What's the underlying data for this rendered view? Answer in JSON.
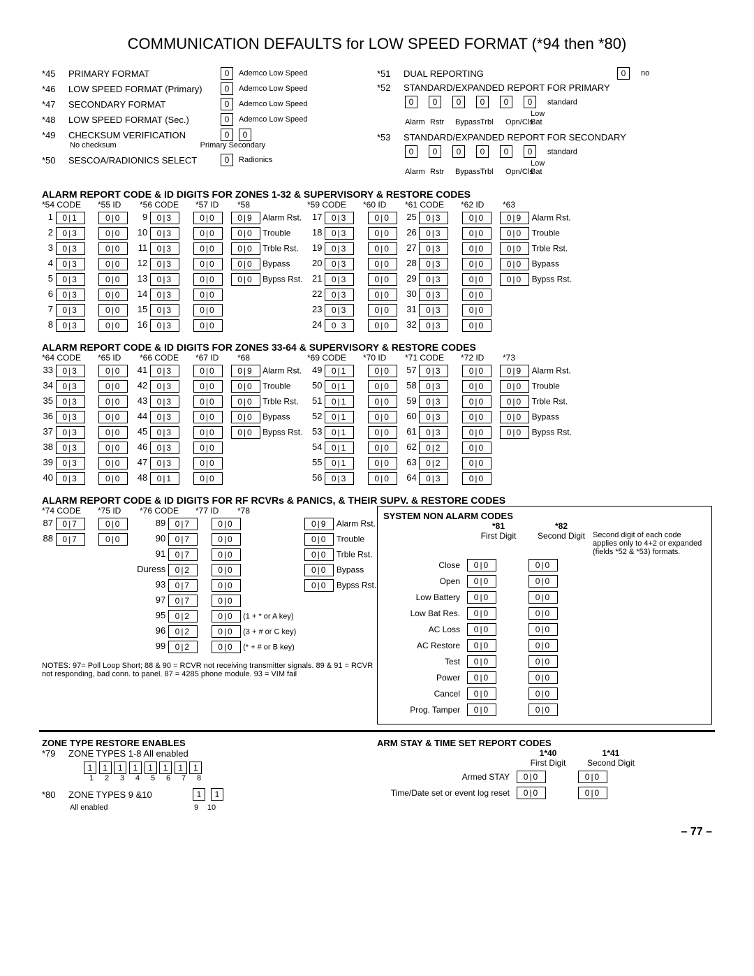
{
  "title": "COMMUNICATION DEFAULTS for LOW SPEED FORMAT (*94 then *80)",
  "page": "– 77 –",
  "top_left": [
    {
      "star": "*45",
      "label": "PRIMARY FORMAT",
      "val": "0",
      "note": "Ademco Low Speed"
    },
    {
      "star": "*46",
      "label": "LOW SPEED FORMAT (Primary)",
      "val": "0",
      "note": "Ademco Low Speed"
    },
    {
      "star": "*47",
      "label": "SECONDARY FORMAT",
      "val": "0",
      "note": "Ademco Low Speed"
    },
    {
      "star": "*48",
      "label": "LOW SPEED FORMAT (Sec.)",
      "val": "0",
      "note": "Ademco Low Speed"
    },
    {
      "star": "*49",
      "label": "CHECKSUM VERIFICATION",
      "val": "0",
      "val2": "0",
      "sub": "No checksum",
      "sub2": "Primary  Secondary"
    },
    {
      "star": "*50",
      "label": "SESCOA/RADIONICS SELECT",
      "val": "0",
      "note": "Radionics"
    }
  ],
  "top_right": {
    "r51": {
      "star": "*51",
      "label": "DUAL REPORTING",
      "val": "0",
      "note": "no"
    },
    "r52": {
      "star": "*52",
      "label": "STANDARD/EXPANDED REPORT FOR PRIMARY",
      "vals": [
        "0",
        "0",
        "0",
        "0",
        "0",
        "0"
      ],
      "note": "standard",
      "subs": [
        "Alarm",
        "Rstr",
        "Bypass",
        "Trbl",
        "Opn/Cls",
        "Low Bat"
      ]
    },
    "r53": {
      "star": "*53",
      "label": "STANDARD/EXPANDED REPORT  FOR SECONDARY",
      "vals": [
        "0",
        "0",
        "0",
        "0",
        "0",
        "0"
      ],
      "note": "standard",
      "subs": [
        "Alarm",
        "Rstr",
        "Bypass",
        "Trbl",
        "Opn/Cls",
        "Low Bat"
      ]
    }
  },
  "sec1_head": "ALARM  REPORT  CODE  &  ID  DIGITS  FOR  ZONES  1-32  &  SUPERVISORY  &  RESTORE  CODES",
  "sec1_cols": [
    "*54 CODE",
    "*55 ID",
    "*56 CODE",
    "*57 ID",
    "*58",
    "*59 CODE",
    "*60 ID",
    "*61 CODE",
    "*62 ID",
    "*63"
  ],
  "sec1": {
    "left": [
      {
        "z": "1",
        "c": "0|1",
        "i": "0|0"
      },
      {
        "z": "2",
        "c": "0|3",
        "i": "0|0"
      },
      {
        "z": "3",
        "c": "0|3",
        "i": "0|0"
      },
      {
        "z": "4",
        "c": "0|3",
        "i": "0|0"
      },
      {
        "z": "5",
        "c": "0|3",
        "i": "0|0"
      },
      {
        "z": "6",
        "c": "0|3",
        "i": "0|0"
      },
      {
        "z": "7",
        "c": "0|3",
        "i": "0|0"
      },
      {
        "z": "8",
        "c": "0|3",
        "i": "0|0"
      }
    ],
    "mid": [
      {
        "z": "9",
        "c": "0|3",
        "i": "0|0"
      },
      {
        "z": "10",
        "c": "0|3",
        "i": "0|0"
      },
      {
        "z": "11",
        "c": "0|3",
        "i": "0|0"
      },
      {
        "z": "12",
        "c": "0|3",
        "i": "0|0"
      },
      {
        "z": "13",
        "c": "0|3",
        "i": "0|0"
      },
      {
        "z": "14",
        "c": "0|3",
        "i": "0|0"
      },
      {
        "z": "15",
        "c": "0|3",
        "i": "0|0"
      },
      {
        "z": "16",
        "c": "0|3",
        "i": "0|0"
      }
    ],
    "star58": [
      {
        "v": "0|9",
        "l": "Alarm Rst."
      },
      {
        "v": "0|0",
        "l": "Trouble"
      },
      {
        "v": "0|0",
        "l": "Trble Rst."
      },
      {
        "v": "0|0",
        "l": "Bypass"
      },
      {
        "v": "0|0",
        "l": "Bypss Rst."
      }
    ],
    "r1": [
      {
        "z": "17",
        "c": "0|3",
        "i": "0|0"
      },
      {
        "z": "18",
        "c": "0|3",
        "i": "0|0"
      },
      {
        "z": "19",
        "c": "0|3",
        "i": "0|0"
      },
      {
        "z": "20",
        "c": "0|3",
        "i": "0|0"
      },
      {
        "z": "21",
        "c": "0|3",
        "i": "0|0"
      },
      {
        "z": "22",
        "c": "0|3",
        "i": "0|0"
      },
      {
        "z": "23",
        "c": "0|3",
        "i": "0|0"
      },
      {
        "z": "24",
        "c": "0 3",
        "i": "0|0"
      }
    ],
    "r2": [
      {
        "z": "25",
        "c": "0|3",
        "i": "0|0"
      },
      {
        "z": "26",
        "c": "0|3",
        "i": "0|0"
      },
      {
        "z": "27",
        "c": "0|3",
        "i": "0|0"
      },
      {
        "z": "28",
        "c": "0|3",
        "i": "0|0"
      },
      {
        "z": "29",
        "c": "0|3",
        "i": "0|0"
      },
      {
        "z": "30",
        "c": "0|3",
        "i": "0|0"
      },
      {
        "z": "31",
        "c": "0|3",
        "i": "0|0"
      },
      {
        "z": "32",
        "c": "0|3",
        "i": "0|0"
      }
    ],
    "star63": [
      {
        "v": "0|9",
        "l": "Alarm Rst."
      },
      {
        "v": "0|0",
        "l": "Trouble"
      },
      {
        "v": "0|0",
        "l": "Trble Rst."
      },
      {
        "v": "0|0",
        "l": "Bypass"
      },
      {
        "v": "0|0",
        "l": "Bypss Rst."
      }
    ]
  },
  "sec2_head": "ALARM  REPORT  CODE  &  ID  DIGITS  FOR  ZONES  33-64  &  SUPERVISORY  &  RESTORE  CODES",
  "sec2_cols": [
    "*64 CODE",
    "*65 ID",
    "*66 CODE",
    "*67 ID",
    "*68",
    "*69 CODE",
    "*70 ID",
    "*71 CODE",
    "*72 ID",
    "*73"
  ],
  "sec2": {
    "left": [
      {
        "z": "33",
        "c": "0|3",
        "i": "0|0"
      },
      {
        "z": "34",
        "c": "0|3",
        "i": "0|0"
      },
      {
        "z": "35",
        "c": "0|3",
        "i": "0|0"
      },
      {
        "z": "36",
        "c": "0|3",
        "i": "0|0"
      },
      {
        "z": "37",
        "c": "0|3",
        "i": "0|0"
      },
      {
        "z": "38",
        "c": "0|3",
        "i": "0|0"
      },
      {
        "z": "39",
        "c": "0|3",
        "i": "0|0"
      },
      {
        "z": "40",
        "c": "0|3",
        "i": "0|0"
      }
    ],
    "mid": [
      {
        "z": "41",
        "c": "0|3",
        "i": "0|0"
      },
      {
        "z": "42",
        "c": "0|3",
        "i": "0|0"
      },
      {
        "z": "43",
        "c": "0|3",
        "i": "0|0"
      },
      {
        "z": "44",
        "c": "0|3",
        "i": "0|0"
      },
      {
        "z": "45",
        "c": "0|3",
        "i": "0|0"
      },
      {
        "z": "46",
        "c": "0|3",
        "i": "0|0"
      },
      {
        "z": "47",
        "c": "0|3",
        "i": "0|0"
      },
      {
        "z": "48",
        "c": "0|1",
        "i": "0|0"
      }
    ],
    "star68": [
      {
        "v": "0|9",
        "l": "Alarm Rst."
      },
      {
        "v": "0|0",
        "l": "Trouble"
      },
      {
        "v": "0|0",
        "l": "Trble Rst."
      },
      {
        "v": "0|0",
        "l": "Bypass"
      },
      {
        "v": "0|0",
        "l": "Bypss Rst."
      }
    ],
    "r1": [
      {
        "z": "49",
        "c": "0|1",
        "i": "0|0"
      },
      {
        "z": "50",
        "c": "0|1",
        "i": "0|0"
      },
      {
        "z": "51",
        "c": "0|1",
        "i": "0|0"
      },
      {
        "z": "52",
        "c": "0|1",
        "i": "0|0"
      },
      {
        "z": "53",
        "c": "0|1",
        "i": "0|0"
      },
      {
        "z": "54",
        "c": "0|1",
        "i": "0|0"
      },
      {
        "z": "55",
        "c": "0|1",
        "i": "0|0"
      },
      {
        "z": "56",
        "c": "0|3",
        "i": "0|0"
      }
    ],
    "r2": [
      {
        "z": "57",
        "c": "0|3",
        "i": "0|0"
      },
      {
        "z": "58",
        "c": "0|3",
        "i": "0|0"
      },
      {
        "z": "59",
        "c": "0|3",
        "i": "0|0"
      },
      {
        "z": "60",
        "c": "0|3",
        "i": "0|0"
      },
      {
        "z": "61",
        "c": "0|3",
        "i": "0|0"
      },
      {
        "z": "62",
        "c": "0|2",
        "i": "0|0"
      },
      {
        "z": "63",
        "c": "0|2",
        "i": "0|0"
      },
      {
        "z": "64",
        "c": "0|3",
        "i": "0|0"
      }
    ],
    "star73": [
      {
        "v": "0|9",
        "l": "Alarm Rst."
      },
      {
        "v": "0|0",
        "l": "Trouble"
      },
      {
        "v": "0|0",
        "l": "Trble Rst."
      },
      {
        "v": "0|0",
        "l": "Bypass"
      },
      {
        "v": "0|0",
        "l": "Bypss Rst."
      }
    ]
  },
  "sec3_head": "ALARM  REPORT  CODE  &  ID  DIGITS  FOR  RF  RCVRs  &  PANICS,  &  THEIR  SUPV.  &  RESTORE  CODES",
  "sec3_cols": [
    "*74 CODE",
    "*75 ID",
    "*76 CODE",
    "*77 ID",
    "*78"
  ],
  "sec3": {
    "left": [
      {
        "z": "87",
        "c": "0|7",
        "i": "0|0"
      },
      {
        "z": "88",
        "c": "0|7",
        "i": "0|0"
      }
    ],
    "mid": [
      {
        "z": "89",
        "c": "0|7",
        "i": "0|0"
      },
      {
        "z": "90",
        "c": "0|7",
        "i": "0|0"
      },
      {
        "z": "91",
        "c": "0|7",
        "i": "0|0"
      },
      {
        "z": "Duress",
        "c": "0|2",
        "i": "0|0"
      },
      {
        "z": "93",
        "c": "0|7",
        "i": "0|0"
      },
      {
        "z": "97",
        "c": "0|7",
        "i": "0|0"
      },
      {
        "z": "95",
        "c": "0|2",
        "i": "0|0",
        "ext": "(1 + * or A key)"
      },
      {
        "z": "96",
        "c": "0|2",
        "i": "0|0",
        "ext": "(3 + # or C key)"
      },
      {
        "z": "99",
        "c": "0|2",
        "i": "0|0",
        "ext": "(* + # or B key)"
      }
    ],
    "star78": [
      {
        "v": "0|9",
        "l": "Alarm Rst."
      },
      {
        "v": "0|0",
        "l": "Trouble"
      },
      {
        "v": "0|0",
        "l": "Trble Rst."
      },
      {
        "v": "0|0",
        "l": "Bypass"
      },
      {
        "v": "0|0",
        "l": "Bypss Rst."
      }
    ],
    "notes": "NOTES: 97= Poll Loop Short; 88 & 90 = RCVR not receiving transmitter signals. 89 & 91 = RCVR not responding, bad conn. to panel. 87 =  4285 phone module. 93 = VIM fail"
  },
  "sys": {
    "head": "SYSTEM  NON  ALARM  CODES",
    "h81": "*81",
    "h82": "*82",
    "fd": "First Digit",
    "sd": "Second Digit",
    "note": "Second digit of each code applies only to 4+2 or expanded (fields *52 & *53) formats.",
    "rows": [
      {
        "l": "Close",
        "a": "0|0",
        "b": "0|0"
      },
      {
        "l": "Open",
        "a": "0|0",
        "b": "0|0"
      },
      {
        "l": "Low Battery",
        "a": "0|0",
        "b": "0|0"
      },
      {
        "l": "Low Bat Res.",
        "a": "0|0",
        "b": "0|0"
      },
      {
        "l": "AC Loss",
        "a": "0|0",
        "b": "0|0"
      },
      {
        "l": "AC Restore",
        "a": "0|0",
        "b": "0|0"
      },
      {
        "l": "Test",
        "a": "0|0",
        "b": "0|0"
      },
      {
        "l": "Power",
        "a": "0|0",
        "b": "0|0"
      },
      {
        "l": "Cancel",
        "a": "0|0",
        "b": "0|0"
      },
      {
        "l": "Prog. Tamper",
        "a": "0|0",
        "b": "0|0"
      }
    ]
  },
  "zt": {
    "head": "ZONE  TYPE  RESTORE  ENABLES",
    "r79": {
      "star": "*79",
      "label": "ZONE TYPES 1-8  All enabled",
      "vals": [
        "1",
        "1",
        "1",
        "1",
        "1",
        "1",
        "1",
        "1"
      ],
      "subs": [
        "1",
        "2",
        "3",
        "4",
        "5",
        "6",
        "7",
        "8"
      ]
    },
    "r80": {
      "star": "*80",
      "label": "ZONE TYPES 9 &10",
      "vals": [
        "1",
        "1"
      ],
      "subs": [
        "9",
        "10"
      ],
      "note": "All enabled"
    }
  },
  "arm": {
    "head": "ARM  STAY  &  TIME  SET  REPORT  CODES",
    "h140": "1*40",
    "h141": "1*41",
    "fd": "First Digit",
    "sd": "Second Digit",
    "rows": [
      {
        "l": "Armed STAY",
        "a": "0|0",
        "b": "0|0"
      },
      {
        "l": "Time/Date set or event log reset",
        "a": "0|0",
        "b": "0|0"
      }
    ]
  }
}
